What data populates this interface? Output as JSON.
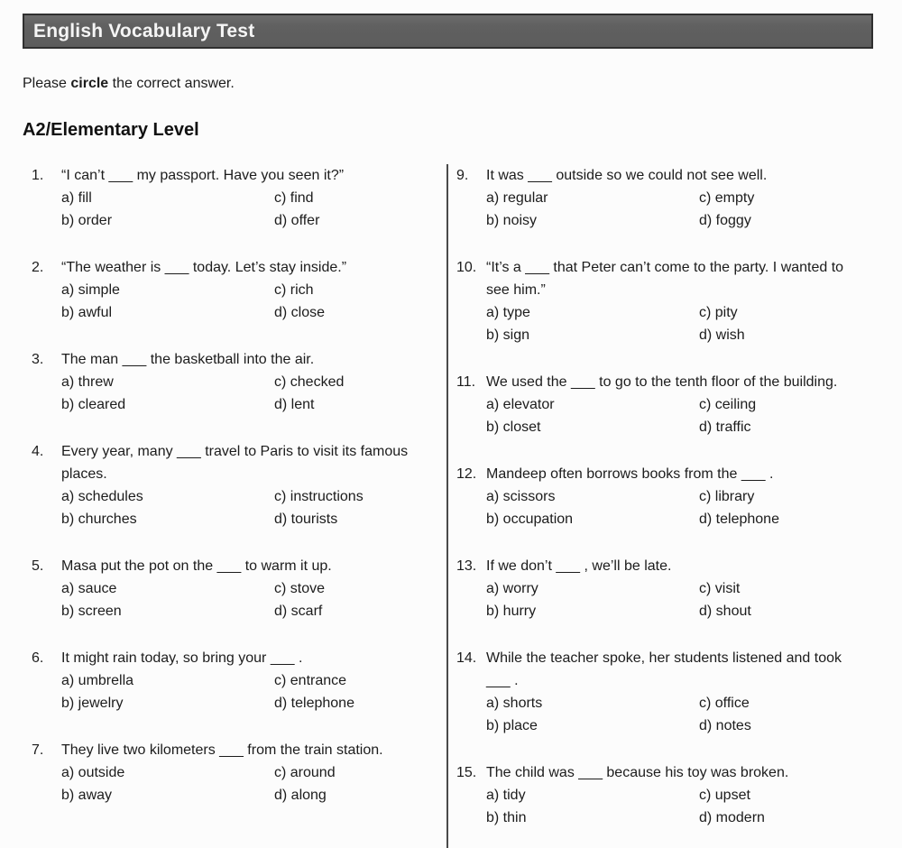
{
  "page": {
    "title": "English Vocabulary Test",
    "instruction": {
      "prefix": "Please ",
      "bold": "circle",
      "suffix": " the correct answer."
    },
    "section_heading": "A2/Elementary Level"
  },
  "colors": {
    "header_bg": "#606060",
    "header_border": "#2f2f2f",
    "header_text": "#f5f5f5",
    "body_text": "#1c1c1c",
    "divider": "#4a4a4a",
    "page_bg": "#fcfcfc"
  },
  "questions_left": [
    {
      "number": "1.",
      "stem": "“I can’t ___ my passport. Have you seen it?”",
      "options": {
        "a": "fill",
        "b": "order",
        "c": "find",
        "d": "offer"
      }
    },
    {
      "number": "2.",
      "stem": "“The weather is ___ today. Let’s stay inside.”",
      "options": {
        "a": "simple",
        "b": "awful",
        "c": "rich",
        "d": "close"
      }
    },
    {
      "number": "3.",
      "stem": "The man ___ the basketball into the air.",
      "options": {
        "a": "threw",
        "b": "cleared",
        "c": "checked",
        "d": "lent"
      }
    },
    {
      "number": "4.",
      "stem": "Every year, many ___ travel to Paris to visit its famous places.",
      "options": {
        "a": "schedules",
        "b": "churches",
        "c": "instructions",
        "d": "tourists"
      }
    },
    {
      "number": "5.",
      "stem": "Masa put the pot on the ___ to warm it up.",
      "options": {
        "a": "sauce",
        "b": "screen",
        "c": "stove",
        "d": "scarf"
      }
    },
    {
      "number": "6.",
      "stem": "It might rain today, so bring your ___ .",
      "options": {
        "a": "umbrella",
        "b": "jewelry",
        "c": "entrance",
        "d": "telephone"
      }
    },
    {
      "number": "7.",
      "stem": "They live two kilometers ___ from the train station.",
      "options": {
        "a": "outside",
        "b": "away",
        "c": "around",
        "d": "along"
      }
    }
  ],
  "questions_right": [
    {
      "number": "9.",
      "stem": "It was ___ outside so we could not see well.",
      "options": {
        "a": "regular",
        "b": "noisy",
        "c": "empty",
        "d": "foggy"
      }
    },
    {
      "number": "10.",
      "stem": "“It’s a ___ that Peter can’t come to the party. I wanted to see him.”",
      "options": {
        "a": "type",
        "b": "sign",
        "c": "pity",
        "d": "wish"
      }
    },
    {
      "number": "11.",
      "stem": "We used the ___ to go to the tenth floor of the building.",
      "options": {
        "a": "elevator",
        "b": "closet",
        "c": "ceiling",
        "d": "traffic"
      }
    },
    {
      "number": "12.",
      "stem": "Mandeep often borrows books from the ___ .",
      "options": {
        "a": "scissors",
        "b": "occupation",
        "c": "library",
        "d": "telephone"
      }
    },
    {
      "number": "13.",
      "stem": "If we don’t ___ , we’ll be late.",
      "options": {
        "a": "worry",
        "b": "hurry",
        "c": "visit",
        "d": "shout"
      }
    },
    {
      "number": "14.",
      "stem": "While the teacher spoke, her students listened and took ___ .",
      "options": {
        "a": "shorts",
        "b": "place",
        "c": "office",
        "d": "notes"
      }
    },
    {
      "number": "15.",
      "stem": "The child was ___ because his toy was broken.",
      "options": {
        "a": "tidy",
        "b": "thin",
        "c": "upset",
        "d": "modern"
      }
    }
  ]
}
